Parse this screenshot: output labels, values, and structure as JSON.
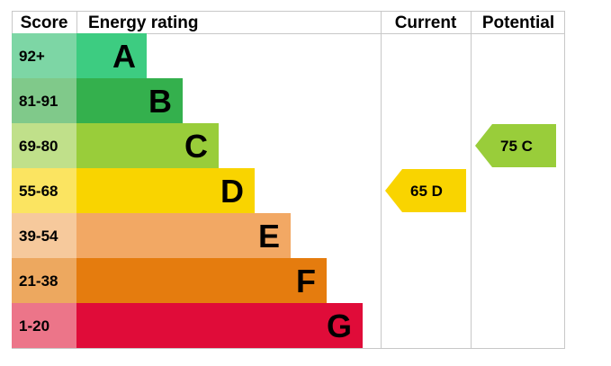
{
  "chart_data": {
    "type": "bar",
    "headers": {
      "score": "Score",
      "rating": "Energy rating",
      "current": "Current",
      "potential": "Potential"
    },
    "bands": [
      {
        "score": "92+",
        "letter": "A",
        "color": "#3dcc81",
        "score_bg": "#7dd6a5",
        "letter_color": "#000000"
      },
      {
        "score": "81-91",
        "letter": "B",
        "color": "#34b04d",
        "score_bg": "#80c98a",
        "letter_color": "#000000"
      },
      {
        "score": "69-80",
        "letter": "C",
        "color": "#99cd3a",
        "score_bg": "#c0e08a",
        "letter_color": "#000000"
      },
      {
        "score": "55-68",
        "letter": "D",
        "color": "#f9d400",
        "score_bg": "#fbe461",
        "letter_color": "#000000"
      },
      {
        "score": "39-54",
        "letter": "E",
        "color": "#f2a864",
        "score_bg": "#f6c99c",
        "letter_color": "#000000"
      },
      {
        "score": "21-38",
        "letter": "F",
        "color": "#e57c0e",
        "score_bg": "#eda85f",
        "letter_color": "#000000"
      },
      {
        "score": "1-20",
        "letter": "G",
        "color": "#e00c39",
        "score_bg": "#ec7589",
        "letter_color": "#000000"
      }
    ],
    "current": {
      "value": 65,
      "band": "D",
      "label": "65  D",
      "color": "#f9d400"
    },
    "potential": {
      "value": 75,
      "band": "C",
      "label": "75  C",
      "color": "#99cd3a"
    }
  }
}
